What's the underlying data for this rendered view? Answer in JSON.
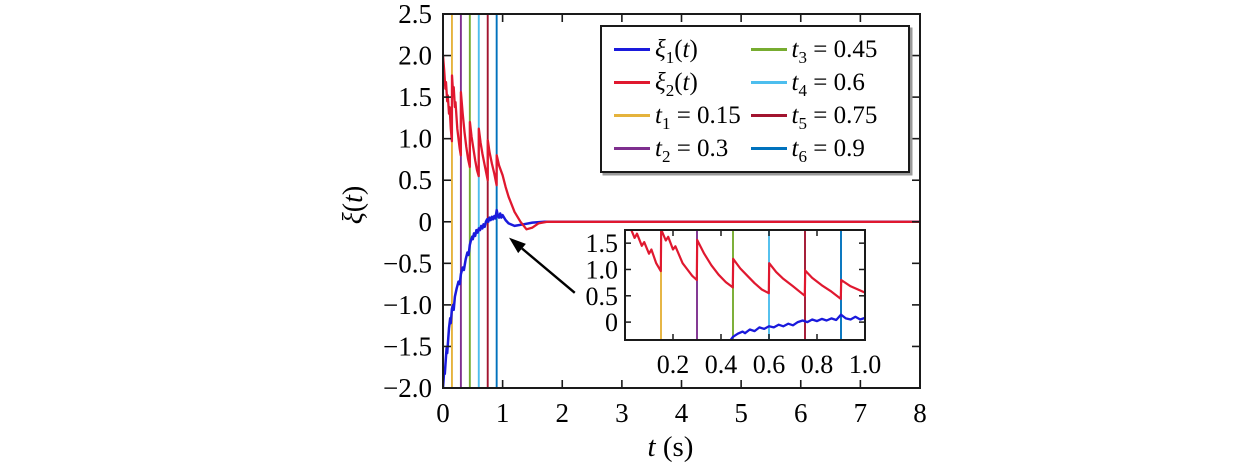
{
  "colors": {
    "xi1_blue": "#1a1adc",
    "xi2_red": "#e0182f",
    "axis": "#1a1a1a",
    "t1_yellow": "#e5b33c",
    "t2_purple": "#7e2f8e",
    "t3_green": "#77ac30",
    "t4_cyan": "#4dbeee",
    "t5_maroon": "#a2142f",
    "t6_blue": "#0072bd"
  },
  "chart_data": {
    "type": "line",
    "title": "",
    "xlabel": "t (s)",
    "ylabel": "ξ(t)",
    "axis_label_parts": {
      "x_var": "t",
      "x_unit": " (s)",
      "y_var": "ξ",
      "y_arg": "t"
    },
    "main_axes": {
      "xlim": [
        0,
        8
      ],
      "ylim": [
        -2.0,
        2.5
      ],
      "xticks": [
        0,
        1,
        2,
        3,
        4,
        5,
        6,
        7,
        8
      ],
      "xtick_labels": [
        "0",
        "1",
        "2",
        "3",
        "4",
        "5",
        "6",
        "7",
        "8"
      ],
      "yticks": [
        2.5,
        2.0,
        1.5,
        1.0,
        0.5,
        0,
        -0.5,
        -1.0,
        -1.5,
        -2.0
      ],
      "ytick_labels": [
        "2.5",
        "2.0",
        "1.5",
        "1.0",
        "0.5",
        "0",
        "−0.5",
        "−1.0",
        "−1.5",
        "−2.0"
      ],
      "grid": false,
      "box": true
    },
    "series": [
      {
        "name": "ξ₁(t)",
        "legend": {
          "var": "ξ",
          "sub": "1",
          "arg": "t"
        },
        "color": "#1a1adc",
        "points": [
          [
            0,
            -2.0
          ],
          [
            0.01,
            -1.9
          ],
          [
            0.02,
            -1.78
          ],
          [
            0.03,
            -1.83
          ],
          [
            0.05,
            -1.62
          ],
          [
            0.06,
            -1.52
          ],
          [
            0.07,
            -1.58
          ],
          [
            0.09,
            -1.38
          ],
          [
            0.1,
            -1.28
          ],
          [
            0.12,
            -1.16
          ],
          [
            0.13,
            -1.22
          ],
          [
            0.15,
            -1.05
          ],
          [
            0.17,
            -1.0
          ],
          [
            0.18,
            -1.06
          ],
          [
            0.2,
            -0.9
          ],
          [
            0.23,
            -0.8
          ],
          [
            0.26,
            -0.72
          ],
          [
            0.28,
            -0.75
          ],
          [
            0.3,
            -0.63
          ],
          [
            0.33,
            -0.55
          ],
          [
            0.35,
            -0.58
          ],
          [
            0.38,
            -0.45
          ],
          [
            0.41,
            -0.37
          ],
          [
            0.43,
            -0.4
          ],
          [
            0.45,
            -0.28
          ],
          [
            0.47,
            -0.22
          ],
          [
            0.49,
            -0.18
          ],
          [
            0.5,
            -0.21
          ],
          [
            0.52,
            -0.14
          ],
          [
            0.54,
            -0.17
          ],
          [
            0.56,
            -0.1
          ],
          [
            0.58,
            -0.13
          ],
          [
            0.6,
            -0.08
          ],
          [
            0.62,
            -0.1
          ],
          [
            0.64,
            -0.05
          ],
          [
            0.66,
            -0.08
          ],
          [
            0.68,
            -0.03
          ],
          [
            0.7,
            -0.06
          ],
          [
            0.72,
            0.0
          ],
          [
            0.74,
            0.03
          ],
          [
            0.76,
            0.0
          ],
          [
            0.78,
            0.05
          ],
          [
            0.8,
            0.02
          ],
          [
            0.82,
            0.06
          ],
          [
            0.84,
            0.03
          ],
          [
            0.86,
            0.07
          ],
          [
            0.88,
            0.04
          ],
          [
            0.9,
            0.14
          ],
          [
            0.92,
            0.07
          ],
          [
            0.94,
            0.05
          ],
          [
            0.96,
            0.1
          ],
          [
            0.98,
            0.05
          ],
          [
            1.0,
            0.08
          ],
          [
            1.05,
            0.02
          ],
          [
            1.1,
            -0.02
          ],
          [
            1.2,
            -0.05
          ],
          [
            1.35,
            -0.03
          ],
          [
            1.5,
            -0.01
          ],
          [
            1.7,
            0
          ],
          [
            8,
            0
          ]
        ]
      },
      {
        "name": "ξ₂(t)",
        "legend": {
          "var": "ξ",
          "sub": "2",
          "arg": "t"
        },
        "color": "#e0182f",
        "points": [
          [
            0,
            2.0
          ],
          [
            0.02,
            1.82
          ],
          [
            0.04,
            1.6
          ],
          [
            0.05,
            1.68
          ],
          [
            0.07,
            1.45
          ],
          [
            0.08,
            1.52
          ],
          [
            0.1,
            1.3
          ],
          [
            0.11,
            1.38
          ],
          [
            0.13,
            1.12
          ],
          [
            0.149,
            0.97
          ],
          [
            0.151,
            1.76
          ],
          [
            0.17,
            1.55
          ],
          [
            0.18,
            1.62
          ],
          [
            0.2,
            1.38
          ],
          [
            0.21,
            1.44
          ],
          [
            0.24,
            1.12
          ],
          [
            0.26,
            1.0
          ],
          [
            0.28,
            0.88
          ],
          [
            0.299,
            0.8
          ],
          [
            0.301,
            1.56
          ],
          [
            0.33,
            1.3
          ],
          [
            0.36,
            1.08
          ],
          [
            0.39,
            0.9
          ],
          [
            0.42,
            0.76
          ],
          [
            0.449,
            0.66
          ],
          [
            0.451,
            1.2
          ],
          [
            0.48,
            1.02
          ],
          [
            0.51,
            0.88
          ],
          [
            0.54,
            0.74
          ],
          [
            0.57,
            0.62
          ],
          [
            0.599,
            0.55
          ],
          [
            0.601,
            1.12
          ],
          [
            0.63,
            0.95
          ],
          [
            0.66,
            0.82
          ],
          [
            0.7,
            0.68
          ],
          [
            0.749,
            0.5
          ],
          [
            0.751,
            0.98
          ],
          [
            0.78,
            0.84
          ],
          [
            0.82,
            0.7
          ],
          [
            0.86,
            0.58
          ],
          [
            0.899,
            0.44
          ],
          [
            0.901,
            0.8
          ],
          [
            0.94,
            0.68
          ],
          [
            1.0,
            0.56
          ],
          [
            1.05,
            0.42
          ],
          [
            1.1,
            0.3
          ],
          [
            1.2,
            0.12
          ],
          [
            1.3,
            0.0
          ],
          [
            1.4,
            -0.09
          ],
          [
            1.5,
            -0.07
          ],
          [
            1.6,
            -0.02
          ],
          [
            1.75,
            0
          ],
          [
            8,
            0
          ]
        ]
      }
    ],
    "event_lines": [
      {
        "legend": {
          "var": "t",
          "sub": "1",
          "value": "0.15"
        },
        "t": 0.15,
        "color": "#e5b33c"
      },
      {
        "legend": {
          "var": "t",
          "sub": "2",
          "value": "0.3"
        },
        "t": 0.3,
        "color": "#7e2f8e"
      },
      {
        "legend": {
          "var": "t",
          "sub": "3",
          "value": "0.45"
        },
        "t": 0.45,
        "color": "#77ac30"
      },
      {
        "legend": {
          "var": "t",
          "sub": "4",
          "value": "0.6"
        },
        "t": 0.6,
        "color": "#4dbeee"
      },
      {
        "legend": {
          "var": "t",
          "sub": "5",
          "value": "0.75"
        },
        "t": 0.75,
        "color": "#a2142f"
      },
      {
        "legend": {
          "var": "t",
          "sub": "6",
          "value": "0.9"
        },
        "t": 0.9,
        "color": "#0072bd"
      }
    ],
    "legend_position": "upper right, two columns",
    "inset": {
      "xlim": [
        0,
        1.0
      ],
      "ylim": [
        -0.34,
        1.75
      ],
      "xticks": [
        0.2,
        0.4,
        0.6,
        0.8,
        1.0
      ],
      "xtick_labels": [
        "0.2",
        "0.4",
        "0.6",
        "0.8",
        "1.0"
      ],
      "yticks": [
        1.5,
        1.0,
        0.5,
        0
      ],
      "ytick_labels": [
        "1.5",
        "1.0",
        "0.5",
        "0"
      ]
    },
    "annotation_arrow": {
      "from_t": 2.21,
      "from_v": -0.855,
      "to_t": 1.107,
      "to_v": -0.19
    }
  }
}
